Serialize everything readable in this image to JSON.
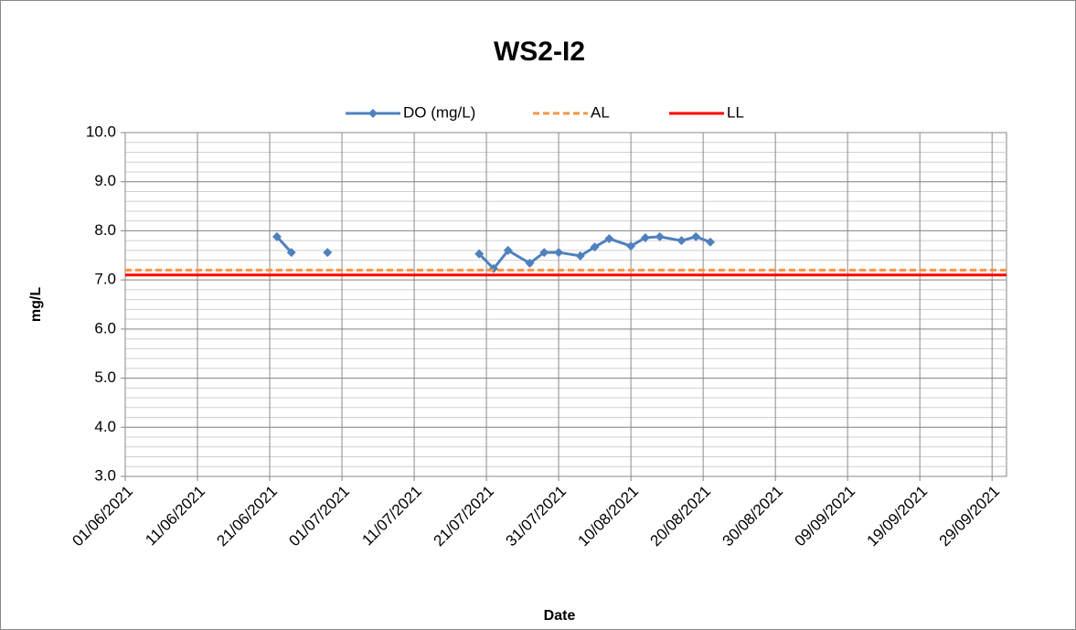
{
  "chart_data": {
    "type": "line",
    "title": "WS2-I2",
    "xlabel": "Date",
    "ylabel": "mg/L",
    "xlim": [
      "01/06/2021",
      "01/10/2021"
    ],
    "xticks": [
      "01/06/2021",
      "11/06/2021",
      "21/06/2021",
      "01/07/2021",
      "11/07/2021",
      "21/07/2021",
      "31/07/2021",
      "10/08/2021",
      "20/08/2021",
      "30/08/2021",
      "09/09/2021",
      "19/09/2021",
      "29/09/2021"
    ],
    "ylim": [
      3,
      10
    ],
    "yticks": [
      {
        "value": 3,
        "label": "3.0"
      },
      {
        "value": 4,
        "label": "4.0"
      },
      {
        "value": 5,
        "label": "5.0"
      },
      {
        "value": 6,
        "label": "6.0"
      },
      {
        "value": 7,
        "label": "7.0"
      },
      {
        "value": 8,
        "label": "8.0"
      },
      {
        "value": 9,
        "label": "9.0"
      },
      {
        "value": 10,
        "label": "10.0"
      }
    ],
    "yminor_step": 0.2,
    "grid": true,
    "legend": "top",
    "series": [
      {
        "name": "DO (mg/L)",
        "color": "#4f81bd",
        "marker": "diamond",
        "dash": "solid",
        "x": [
          "22/06/2021",
          "24/06/2021",
          "26/06/2021",
          "29/06/2021",
          "10/07/2021",
          "20/07/2021",
          "22/07/2021",
          "24/07/2021",
          "27/07/2021",
          "29/07/2021",
          "31/07/2021",
          "03/08/2021",
          "05/08/2021",
          "07/08/2021",
          "10/08/2021",
          "12/08/2021",
          "14/08/2021",
          "17/08/2021",
          "19/08/2021",
          "21/08/2021"
        ],
        "values": [
          7.88,
          7.56,
          null,
          7.56,
          null,
          7.53,
          7.23,
          7.6,
          7.34,
          7.56,
          7.56,
          7.49,
          7.67,
          7.84,
          7.69,
          7.86,
          7.88,
          7.8,
          7.88,
          7.77
        ]
      },
      {
        "name": "AL",
        "color": "#f79646",
        "marker": "none",
        "dash": "dashed",
        "x": [
          "01/06/2021",
          "01/10/2021"
        ],
        "values": [
          7.2,
          7.2
        ]
      },
      {
        "name": "LL",
        "color": "#ff0000",
        "marker": "none",
        "dash": "solid",
        "x": [
          "01/06/2021",
          "01/10/2021"
        ],
        "values": [
          7.1,
          7.1
        ]
      }
    ]
  }
}
